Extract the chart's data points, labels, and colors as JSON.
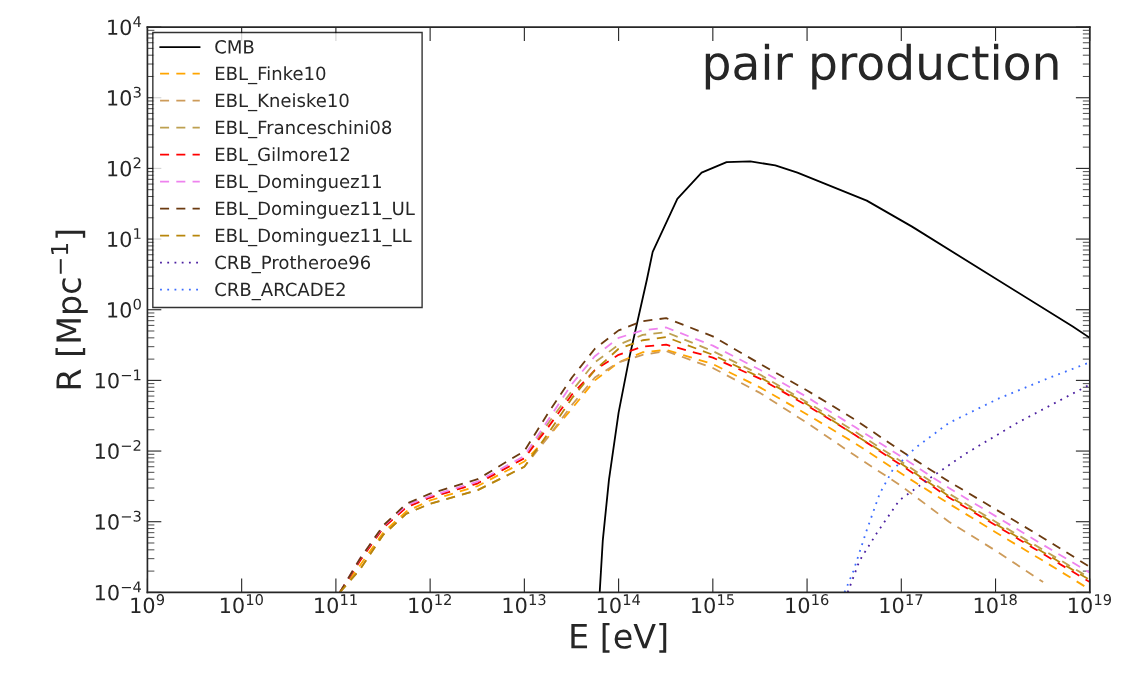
{
  "chart_data": {
    "type": "line",
    "xlabel": "E [eV]",
    "ylabel": "R [Mpc$^{−1}$]",
    "annotations": [
      "pair production"
    ],
    "log": "xy",
    "grid": false,
    "legend": "top left",
    "marker": "none",
    "xlim": [
      1000000000.0,
      1e+19
    ],
    "ylim": [
      0.0001,
      10000.0
    ],
    "xticks": [
      {
        "value": 1000000000.0,
        "label": "10$^{9}$"
      },
      {
        "value": 10000000000.0,
        "label": "10$^{10}$"
      },
      {
        "value": 100000000000.0,
        "label": "10$^{11}$"
      },
      {
        "value": 1000000000000.0,
        "label": "10$^{12}$"
      },
      {
        "value": 10000000000000.0,
        "label": "10$^{13}$"
      },
      {
        "value": 100000000000000.0,
        "label": "10$^{14}$"
      },
      {
        "value": 1000000000000000.0,
        "label": "10$^{15}$"
      },
      {
        "value": 1e+16,
        "label": "10$^{16}$"
      },
      {
        "value": 1e+17,
        "label": "10$^{17}$"
      },
      {
        "value": 1e+18,
        "label": "10$^{18}$"
      },
      {
        "value": 1e+19,
        "label": "10$^{19}$"
      }
    ],
    "yticks": [
      {
        "value": 0.0001,
        "label": "10$^{−4}$"
      },
      {
        "value": 0.001,
        "label": "10$^{−3}$"
      },
      {
        "value": 0.01,
        "label": "10$^{−2}$"
      },
      {
        "value": 0.1,
        "label": "10$^{−1}$"
      },
      {
        "value": 1,
        "label": "10$^{0}$"
      },
      {
        "value": 10,
        "label": "10$^{1}$"
      },
      {
        "value": 100,
        "label": "10$^{2}$"
      },
      {
        "value": 1000,
        "label": "10$^{3}$"
      },
      {
        "value": 10000,
        "label": "10$^{4}$"
      }
    ],
    "x": [
      110000000000.0,
      180000000000.0,
      320000000000.0,
      560000000000.0,
      1000000000000.0,
      3200000000000.0,
      10000000000000.0,
      18000000000000.0,
      32000000000000.0,
      56000000000000.0,
      100000000000000.0,
      180000000000000.0,
      320000000000000.0,
      1000000000000000.0,
      3200000000000000.0,
      1e+16,
      3.2e+16,
      1e+17,
      3.2e+17,
      1e+18,
      3.2e+18,
      1e+19
    ],
    "series": [
      {
        "name": "CMB",
        "color": "#000000",
        "line_style": "solid",
        "x": [
          63000000000000.0,
          68000000000000.0,
          79000000000000.0,
          100000000000000.0,
          130000000000000.0,
          200000000000000.0,
          230000000000000.0,
          420000000000000.0,
          760000000000000.0,
          1400000000000000.0,
          2500000000000000.0,
          4600000000000000.0,
          7900000000000000.0,
          4.3e+16,
          1.3e+17,
          6.8e+17,
          6.6e+18,
          1e+19
        ],
        "values": [
          0.0001,
          0.00055,
          0.0039,
          0.035,
          0.21,
          2.7,
          6.6,
          37,
          87,
          123,
          126,
          110,
          87,
          35,
          15,
          3.8,
          0.58,
          0.4
        ]
      },
      {
        "name": "EBL_Finke10",
        "color": "#ffa500",
        "line_style": "dashed",
        "values": [
          0.0001,
          0.00024,
          0.00071,
          0.0014,
          0.002,
          0.0032,
          0.0071,
          0.016,
          0.04,
          0.1,
          0.18,
          0.25,
          0.27,
          0.17,
          0.079,
          0.033,
          0.013,
          0.0048,
          0.0018,
          0.00071,
          0.00028,
          0.00011
        ]
      },
      {
        "name": "EBL_Kneiske10",
        "color": "#cd9b5a",
        "line_style": "dashed",
        "values": [
          0.0001,
          0.00021,
          0.00066,
          0.0013,
          0.0018,
          0.0028,
          0.006,
          0.016,
          0.045,
          0.11,
          0.18,
          0.23,
          0.26,
          0.15,
          0.066,
          0.025,
          0.0087,
          0.0032,
          0.001,
          0.00039,
          0.00014,
          null
        ]
      },
      {
        "name": "EBL_Franceschini08",
        "color": "#bda050",
        "line_style": "dashed",
        "values": [
          0.0001,
          0.00028,
          0.00083,
          0.0016,
          0.0022,
          0.0035,
          0.0079,
          0.025,
          0.071,
          0.18,
          0.32,
          0.44,
          0.48,
          0.26,
          0.12,
          0.049,
          0.019,
          0.0071,
          0.0025,
          0.001,
          0.0004,
          0.00016
        ]
      },
      {
        "name": "EBL_Gilmore12",
        "color": "#ff0000",
        "line_style": "dashed",
        "values": [
          0.0001,
          0.00028,
          0.00083,
          0.0016,
          0.0022,
          0.0035,
          0.0079,
          0.022,
          0.063,
          0.14,
          0.23,
          0.3,
          0.32,
          0.21,
          0.105,
          0.044,
          0.017,
          0.0063,
          0.0022,
          0.00089,
          0.00035,
          0.00014
        ]
      },
      {
        "name": "EBL_Dominguez11",
        "color": "#ee82ee",
        "line_style": "dashed",
        "values": [
          0.0001,
          0.0003,
          0.00087,
          0.0017,
          0.0023,
          0.0037,
          0.0085,
          0.028,
          0.089,
          0.22,
          0.4,
          0.51,
          0.56,
          0.31,
          0.14,
          0.058,
          0.022,
          0.0083,
          0.003,
          0.0012,
          0.00047,
          0.00019
        ]
      },
      {
        "name": "EBL_Dominguez11_UL",
        "color": "#6b3a10",
        "line_style": "dashed",
        "values": [
          0.0001,
          0.0003,
          0.00089,
          0.0018,
          0.0025,
          0.004,
          0.01,
          0.035,
          0.11,
          0.28,
          0.51,
          0.69,
          0.76,
          0.42,
          0.17,
          0.072,
          0.028,
          0.01,
          0.0037,
          0.0015,
          0.00059,
          0.00023
        ]
      },
      {
        "name": "EBL_Dominguez11_LL",
        "color": "#b8860b",
        "line_style": "dashed",
        "values": [
          0.0001,
          0.00021,
          0.00066,
          0.0013,
          0.0018,
          0.0028,
          0.006,
          0.018,
          0.056,
          0.14,
          0.28,
          0.37,
          0.41,
          0.23,
          0.11,
          0.046,
          0.017,
          0.0066,
          0.0023,
          0.00093,
          0.00037,
          0.00015
        ]
      },
      {
        "name": "CRB_Protheroe96",
        "color": "#4b1fa0",
        "line_style": "dotted",
        "x": [
          2.7e+16,
          3.6e+16,
          5.5e+16,
          9.5e+16,
          2.1e+17,
          4.9e+17,
          1.7e+18,
          4.8e+18,
          1e+19
        ],
        "values": [
          0.0001,
          0.00028,
          0.00069,
          0.002,
          0.0043,
          0.0093,
          0.025,
          0.052,
          0.087
        ]
      },
      {
        "name": "CRB_ARCADE2",
        "color": "#3b6cff",
        "line_style": "dotted",
        "x": [
          2.5e+16,
          3.1e+16,
          4.3e+16,
          5.9e+16,
          8.1e+16,
          1.4e+17,
          3.2e+17,
          1.1e+18,
          3.8e+18,
          1e+19
        ],
        "values": [
          0.0001,
          0.0002,
          0.00076,
          0.0025,
          0.0054,
          0.011,
          0.025,
          0.056,
          0.11,
          0.18
        ]
      }
    ]
  }
}
